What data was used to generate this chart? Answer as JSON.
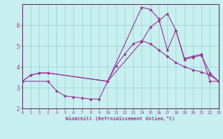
{
  "xlabel": "Windchill (Refroidissement éolien,°C)",
  "bg_color": "#c8f0f0",
  "line_color": "#993399",
  "grid_color": "#99cccc",
  "spine_color": "#663366",
  "xlim": [
    0,
    23
  ],
  "ylim": [
    2,
    7
  ],
  "yticks": [
    2,
    3,
    4,
    5,
    6
  ],
  "xticks": [
    0,
    1,
    2,
    3,
    4,
    5,
    6,
    7,
    8,
    9,
    10,
    11,
    12,
    13,
    14,
    15,
    16,
    17,
    18,
    19,
    20,
    21,
    22,
    23
  ],
  "line1_x": [
    0,
    1,
    2,
    3,
    10,
    14,
    15,
    16,
    17,
    18,
    19,
    20,
    21,
    22,
    23
  ],
  "line1_y": [
    3.3,
    3.6,
    3.7,
    3.7,
    3.3,
    6.85,
    6.75,
    6.3,
    4.8,
    5.75,
    4.4,
    4.5,
    4.6,
    3.3,
    3.3
  ],
  "line2_x": [
    0,
    3,
    4,
    5,
    6,
    7,
    8,
    9,
    10,
    11,
    12,
    13,
    14,
    15,
    16,
    17,
    18,
    19,
    20,
    21,
    22,
    23
  ],
  "line2_y": [
    3.3,
    3.3,
    2.85,
    2.6,
    2.55,
    2.5,
    2.45,
    2.45,
    3.3,
    4.05,
    4.6,
    5.1,
    5.25,
    5.1,
    4.8,
    4.5,
    4.2,
    4.0,
    3.85,
    3.75,
    3.6,
    3.3
  ],
  "line3_x": [
    0,
    1,
    2,
    3,
    10,
    14,
    15,
    16,
    17,
    18,
    19,
    20,
    21,
    22,
    23
  ],
  "line3_y": [
    3.3,
    3.6,
    3.7,
    3.7,
    3.3,
    5.2,
    5.9,
    6.2,
    6.55,
    5.75,
    4.35,
    4.45,
    4.55,
    3.7,
    3.3
  ]
}
